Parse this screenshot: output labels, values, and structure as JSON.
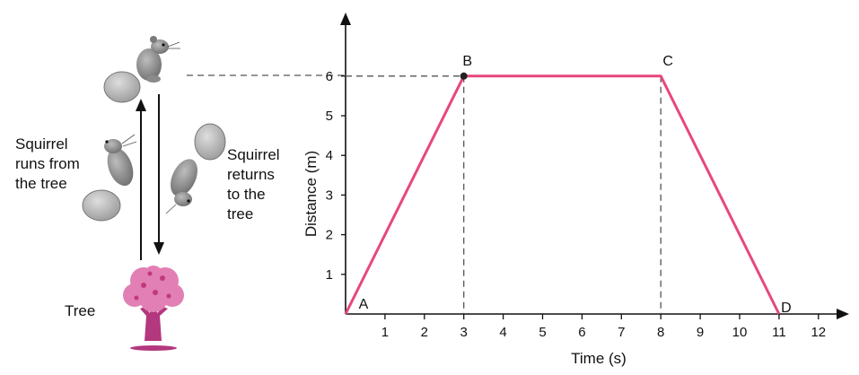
{
  "illustration": {
    "runs_from_tree": [
      "Squirrel",
      "runs from",
      "the tree"
    ],
    "returns_to_tree": [
      "Squirrel",
      "returns",
      "to the",
      "tree"
    ],
    "tree_label": "Tree",
    "body_color": "#8f8f8f",
    "tree_color": "#e27fb4",
    "trunk_color": "#b3387e"
  },
  "chart_data": {
    "type": "line",
    "title": "",
    "xlabel": "Time (s)",
    "ylabel": "Distance (m)",
    "xlim": [
      0,
      12
    ],
    "ylim": [
      0,
      6
    ],
    "x_ticks": [
      1,
      2,
      3,
      4,
      5,
      6,
      7,
      8,
      9,
      10,
      11,
      12
    ],
    "y_ticks": [
      1,
      2,
      3,
      4,
      5,
      6
    ],
    "grid": false,
    "line_color": "#e8467f",
    "series": [
      {
        "x": [
          0,
          3,
          8,
          11
        ],
        "y": [
          0,
          6,
          6,
          0
        ],
        "point_labels": [
          "A",
          "B",
          "C",
          "D"
        ]
      }
    ],
    "guides": [
      {
        "x": 3,
        "y": 6
      },
      {
        "x": 8,
        "y": 6
      }
    ]
  }
}
